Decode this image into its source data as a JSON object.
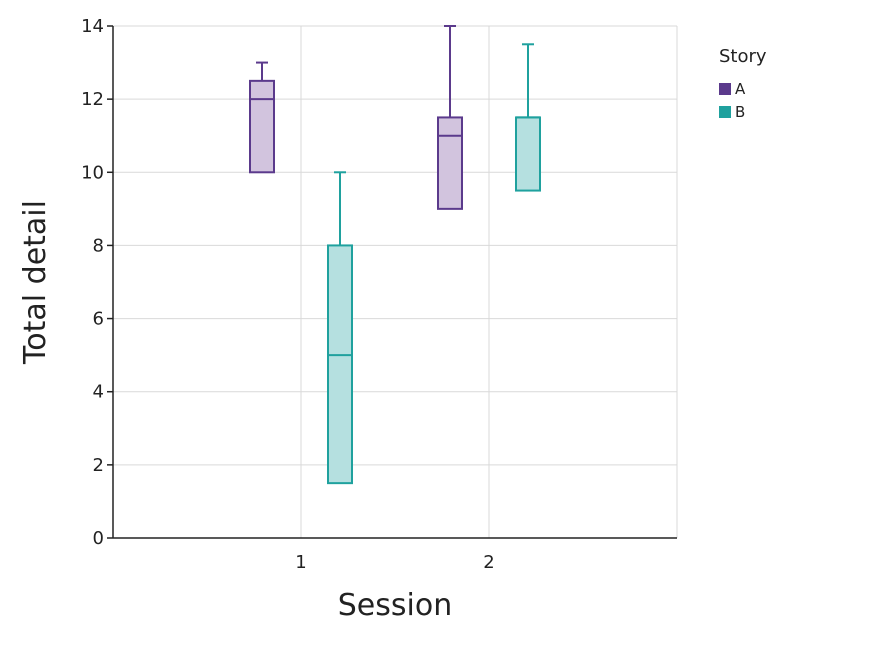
{
  "chart_data": {
    "type": "box",
    "xlabel": "Session",
    "ylabel": "Total detail",
    "ylim": [
      0,
      14
    ],
    "yticks": [
      "0",
      "2",
      "4",
      "6",
      "8",
      "10",
      "12",
      "14"
    ],
    "categories": [
      "1",
      "2"
    ],
    "grid": true,
    "legend": {
      "title": "Story",
      "placement": "top-right",
      "entries": [
        "A",
        "B"
      ]
    },
    "series": [
      {
        "name": "A",
        "color": "#5b3a8c",
        "fill": "#d2c4de",
        "boxes": [
          {
            "category": "1",
            "min": 10,
            "q1": 10,
            "median": 12,
            "q3": 12.5,
            "max": 13
          },
          {
            "category": "2",
            "min": 9,
            "q1": 9,
            "median": 11,
            "q3": 11.5,
            "max": 14
          }
        ]
      },
      {
        "name": "B",
        "color": "#1fa19e",
        "fill": "#b5e0e0",
        "boxes": [
          {
            "category": "1",
            "min": 1.5,
            "q1": 1.5,
            "median": 5,
            "q3": 8,
            "max": 10
          },
          {
            "category": "2",
            "min": 9.5,
            "q1": 9.5,
            "median": 11.5,
            "q3": 11.5,
            "max": 13.5
          }
        ]
      }
    ]
  }
}
